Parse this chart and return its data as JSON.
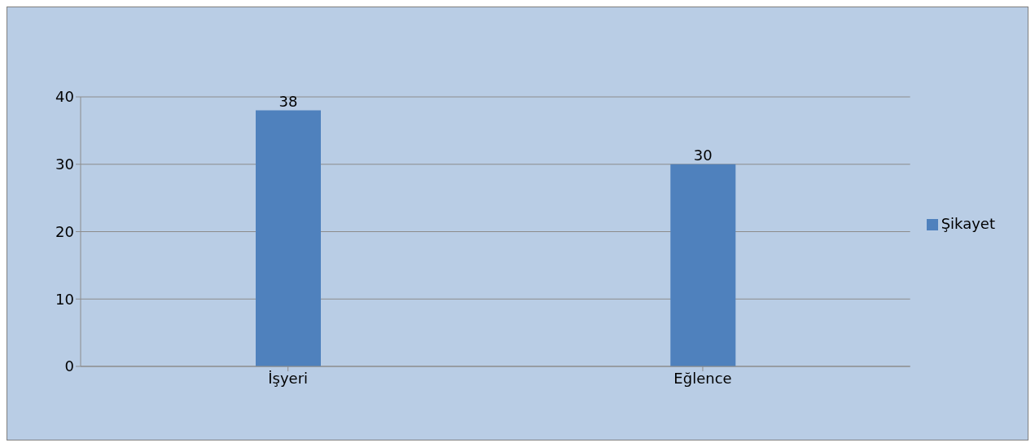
{
  "chart_data": {
    "type": "bar",
    "categories": [
      "İşyeri",
      "Eğlence"
    ],
    "series": [
      {
        "name": "Şikayet",
        "color": "#4f81bd",
        "values": [
          38,
          30
        ]
      }
    ],
    "ylim": [
      0,
      40
    ],
    "yticks": [
      0,
      10,
      20,
      30,
      40
    ],
    "grid": "y",
    "legend": "right",
    "data_labels": true
  }
}
